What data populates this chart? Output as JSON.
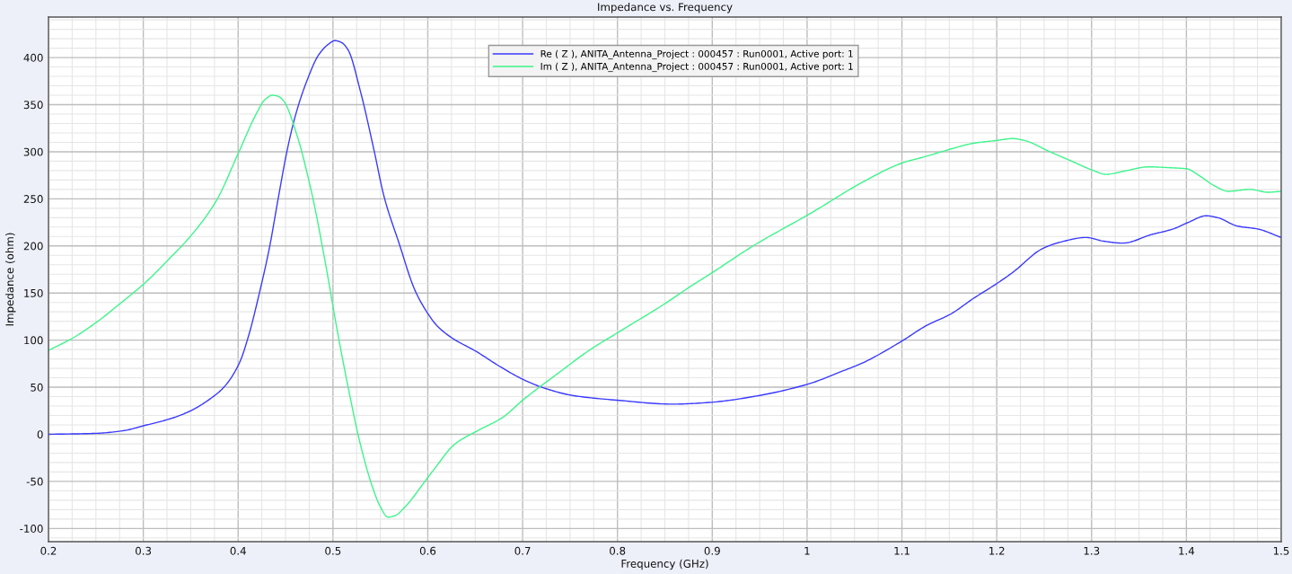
{
  "chart_data": {
    "type": "line",
    "title": "Impedance vs. Frequency",
    "xlabel": "Frequency (GHz)",
    "ylabel": "Impedance (ohm)",
    "xlim": [
      0.2,
      1.5
    ],
    "ylim": [
      -114,
      443
    ],
    "xticks": [
      0.2,
      0.3,
      0.4,
      0.5,
      0.6,
      0.7,
      0.8,
      0.9,
      1,
      1.1,
      1.2,
      1.3,
      1.4,
      1.5
    ],
    "yticks": [
      -100,
      -50,
      0,
      50,
      100,
      150,
      200,
      250,
      300,
      350,
      400
    ],
    "grid": true,
    "legend": "top",
    "series": [
      {
        "name": "Re ( Z ), ANITA_Antenna_Project : 000457 : Run0001, Active port: 1",
        "color": "#3a3aff",
        "x": [
          0.2,
          0.25,
          0.28,
          0.3,
          0.33,
          0.35,
          0.371,
          0.385,
          0.401,
          0.412,
          0.421,
          0.433,
          0.442,
          0.452,
          0.46,
          0.472,
          0.485,
          0.495,
          0.502,
          0.509,
          0.516,
          0.529,
          0.543,
          0.554,
          0.57,
          0.586,
          0.597,
          0.61,
          0.626,
          0.651,
          0.676,
          0.701,
          0.723,
          0.754,
          0.802,
          0.858,
          0.899,
          0.943,
          1.0,
          1.037,
          1.059,
          1.1,
          1.125,
          1.152,
          1.175,
          1.2,
          1.217,
          1.248,
          1.267,
          1.294,
          1.313,
          1.333,
          1.363,
          1.386,
          1.402,
          1.421,
          1.433,
          1.454,
          1.475,
          1.5
        ],
        "values": [
          0,
          1,
          4,
          9,
          17,
          25,
          38,
          50,
          75,
          108,
          144,
          198,
          249,
          303,
          337,
          374,
          403,
          414,
          418,
          416,
          408,
          364,
          303,
          252,
          202,
          154,
          133,
          115,
          102,
          88,
          72,
          58,
          49,
          41,
          36,
          32,
          34,
          40,
          53,
          67,
          76,
          99,
          115,
          128,
          144,
          160,
          172,
          197,
          204,
          209,
          205,
          203,
          212,
          218,
          225,
          232,
          230,
          221,
          218,
          209
        ]
      },
      {
        "name": "Im ( Z ), ANITA_Antenna_Project : 000457 : Run0001, Active port: 1",
        "color": "#3cf58a",
        "x": [
          0.2,
          0.227,
          0.252,
          0.277,
          0.302,
          0.327,
          0.352,
          0.377,
          0.4,
          0.419,
          0.428,
          0.436,
          0.442,
          0.448,
          0.461,
          0.477,
          0.492,
          0.504,
          0.515,
          0.529,
          0.542,
          0.55,
          0.558,
          0.566,
          0.577,
          0.597,
          0.606,
          0.629,
          0.651,
          0.679,
          0.701,
          0.739,
          0.77,
          0.802,
          0.849,
          0.877,
          0.899,
          0.943,
          1.006,
          1.059,
          1.1,
          1.125,
          1.152,
          1.175,
          1.2,
          1.217,
          1.229,
          1.256,
          1.279,
          1.302,
          1.315,
          1.337,
          1.36,
          1.383,
          1.4,
          1.413,
          1.431,
          1.444,
          1.467,
          1.486,
          1.5
        ],
        "values": [
          89,
          103,
          120,
          140,
          161,
          186,
          213,
          248,
          298,
          340,
          355,
          360,
          359,
          354,
          321,
          259,
          182,
          113,
          55,
          -11,
          -57,
          -77,
          -88,
          -86,
          -76,
          -50,
          -38,
          -10,
          3,
          18,
          37,
          66,
          89,
          109,
          138,
          157,
          171,
          200,
          236,
          268,
          288,
          295,
          303,
          309,
          312,
          314,
          312,
          300,
          290,
          280,
          276,
          280,
          284,
          283,
          282,
          275,
          263,
          258,
          260,
          257,
          258
        ]
      }
    ]
  }
}
